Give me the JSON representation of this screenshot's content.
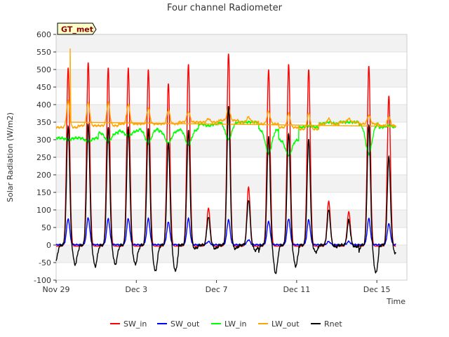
{
  "chart_data": {
    "type": "line",
    "title": "Four channel Radiometer",
    "xlabel": "Time",
    "ylabel": "Solar Radiation (W/m2)",
    "badge": "GT_met",
    "xlim": [
      0,
      17.5
    ],
    "ylim": [
      -100,
      600
    ],
    "yticks": [
      -100,
      -50,
      0,
      50,
      100,
      150,
      200,
      250,
      300,
      350,
      400,
      450,
      500,
      550,
      600
    ],
    "xticks": [
      {
        "value": 0,
        "label": "Nov 29"
      },
      {
        "value": 4,
        "label": "Dec 3"
      },
      {
        "value": 8,
        "label": "Dec 7"
      },
      {
        "value": 12,
        "label": "Dec 11"
      },
      {
        "value": 16,
        "label": "Dec 15"
      }
    ],
    "days": [
      0.6,
      1.6,
      2.6,
      3.6,
      4.6,
      5.6,
      6.6,
      7.6,
      8.6,
      9.6,
      10.6,
      11.6,
      12.6,
      13.6,
      14.6,
      15.6,
      16.6
    ],
    "series": [
      {
        "name": "SW_in",
        "color": "#ff0000",
        "peaks": [
          505,
          520,
          505,
          505,
          500,
          460,
          515,
          105,
          545,
          165,
          500,
          515,
          500,
          125,
          95,
          510,
          425
        ]
      },
      {
        "name": "SW_out",
        "color": "#0000ff",
        "peaks": [
          75,
          78,
          75,
          75,
          75,
          65,
          75,
          10,
          72,
          15,
          68,
          75,
          72,
          10,
          10,
          75,
          60
        ]
      },
      {
        "name": "LW_in",
        "color": "#00ff00",
        "night": [
          305,
          305,
          320,
          325,
          330,
          325,
          330,
          345,
          350,
          350,
          330,
          300,
          335,
          345,
          350,
          345,
          335
        ],
        "day": [
          300,
          295,
          295,
          310,
          290,
          290,
          285,
          340,
          300,
          350,
          260,
          255,
          340,
          350,
          350,
          260,
          340
        ]
      },
      {
        "name": "LW_out",
        "color": "#ffa500",
        "night": [
          335,
          340,
          340,
          345,
          345,
          345,
          350,
          350,
          355,
          350,
          345,
          335,
          330,
          345,
          350,
          345,
          340
        ],
        "peaks": [
          410,
          405,
          405,
          400,
          390,
          385,
          380,
          360,
          390,
          365,
          380,
          375,
          375,
          360,
          360,
          370,
          365
        ]
      },
      {
        "name": "Rnet",
        "color": "#000000",
        "peaks": [
          340,
          345,
          335,
          335,
          330,
          290,
          325,
          80,
          395,
          130,
          310,
          320,
          300,
          100,
          70,
          340,
          250
        ],
        "night": [
          -55,
          -60,
          -55,
          -55,
          -75,
          -75,
          -10,
          -10,
          -10,
          -15,
          -80,
          -60,
          -20,
          -5,
          -5,
          -80,
          -25
        ]
      }
    ],
    "extras": {
      "LW_out_spike": {
        "day": 0.7,
        "value": 560
      }
    }
  }
}
